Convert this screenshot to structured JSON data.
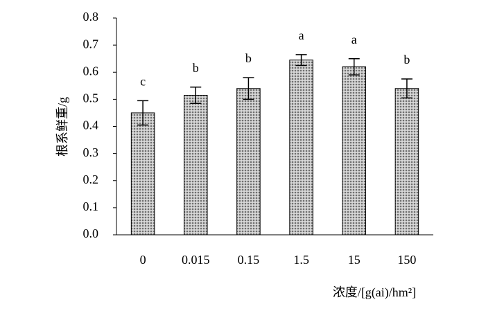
{
  "chart_data": {
    "type": "bar",
    "x_label": "浓度/[g(ai)/hm²]",
    "y_label": "根系鲜重/g",
    "categories": [
      "0",
      "0.015",
      "0.15",
      "1.5",
      "15",
      "150"
    ],
    "values": [
      0.45,
      0.515,
      0.54,
      0.645,
      0.62,
      0.54
    ],
    "errors": [
      0.045,
      0.03,
      0.04,
      0.02,
      0.03,
      0.035
    ],
    "significance_letters": [
      "c",
      "b",
      "b",
      "a",
      "a",
      "b"
    ],
    "color": "#6e6e6e",
    "ylim": [
      0,
      0.8
    ],
    "yticks": [
      {
        "value": 0,
        "label": "0.0"
      },
      0.1,
      0.2,
      0.3,
      0.4,
      0.5,
      0.6,
      0.7,
      0.8
    ],
    "grid": false
  }
}
